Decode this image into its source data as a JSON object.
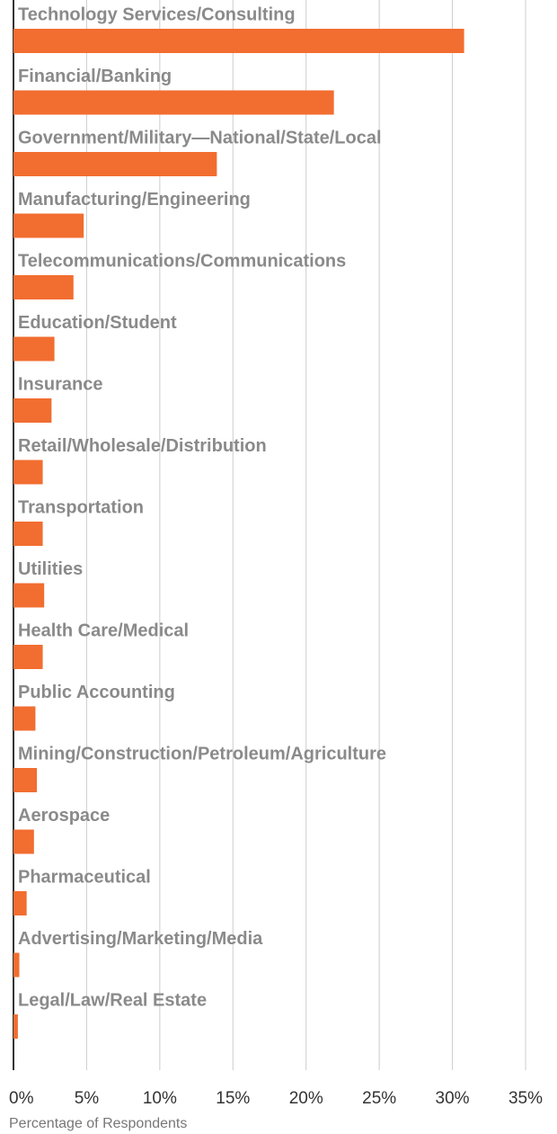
{
  "chart_data": {
    "type": "bar",
    "orientation": "horizontal",
    "x_label": "Percentage of Respondents",
    "categories": [
      "Technology Services/Consulting",
      "Financial/Banking",
      "Government/Military—National/State/Local",
      "Manufacturing/Engineering",
      "Telecommunications/Communications",
      "Education/Student",
      "Insurance",
      "Retail/Wholesale/Distribution",
      "Transportation",
      "Utilities",
      "Health Care/Medical",
      "Public Accounting",
      "Mining/Construction/Petroleum/Agriculture",
      "Aerospace",
      "Pharmaceutical",
      "Advertising/Marketing/Media",
      "Legal/Law/Real Estate"
    ],
    "values": [
      30.8,
      21.9,
      13.9,
      4.8,
      4.1,
      2.8,
      2.6,
      2.0,
      2.0,
      2.1,
      2.0,
      1.5,
      1.6,
      1.4,
      0.9,
      0.4,
      0.3
    ],
    "color": "#f26d30",
    "xlim": [
      0,
      35
    ],
    "xticks": [
      {
        "value": 0,
        "label": "0%"
      },
      {
        "value": 5,
        "label": "5%"
      },
      {
        "value": 10,
        "label": "10%"
      },
      {
        "value": 15,
        "label": "15%"
      },
      {
        "value": 20,
        "label": "20%"
      },
      {
        "value": 25,
        "label": "25%"
      },
      {
        "value": 30,
        "label": "30%"
      },
      {
        "value": 35,
        "label": "35%"
      }
    ],
    "grid": true
  }
}
